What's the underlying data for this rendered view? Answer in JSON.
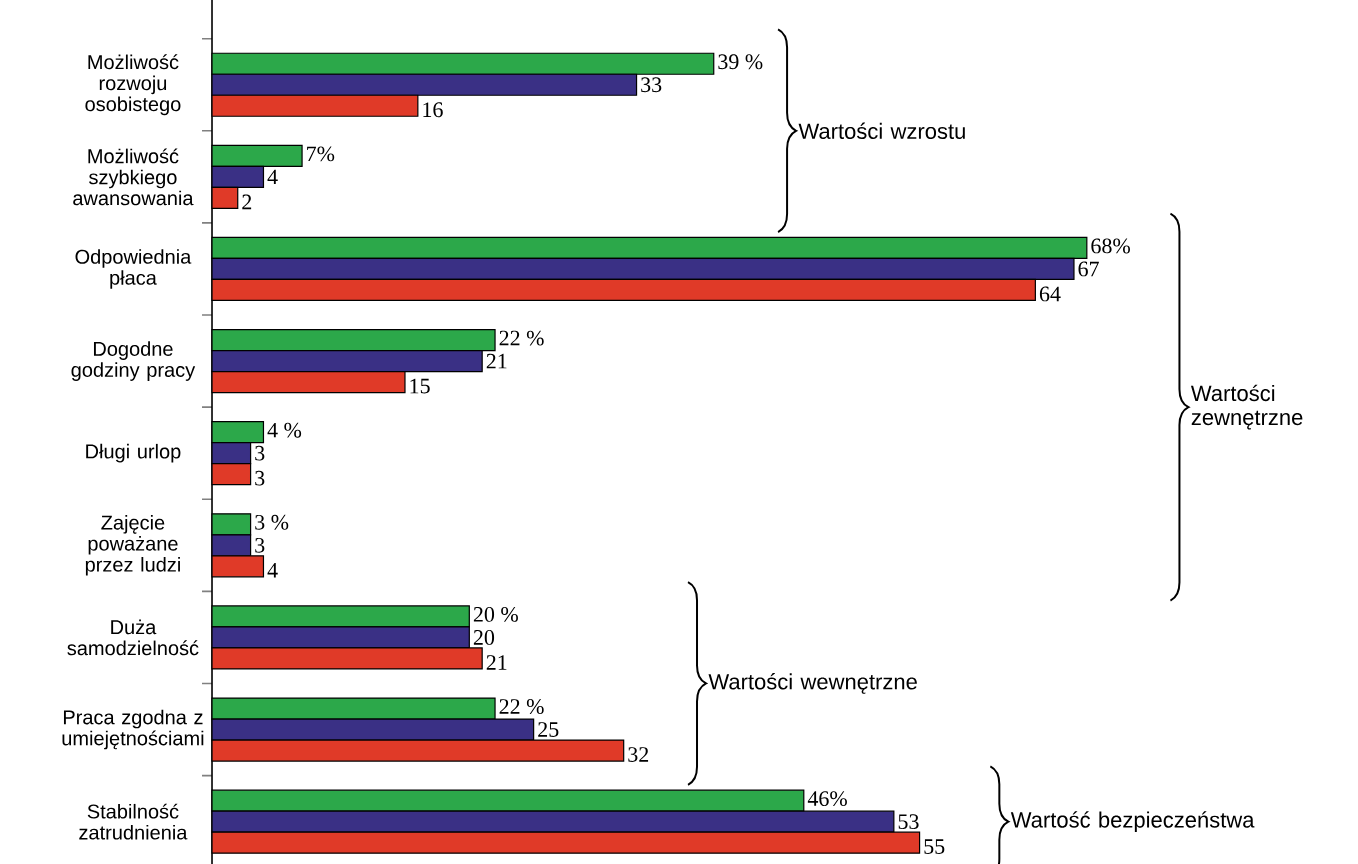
{
  "chart_data": {
    "type": "bar",
    "orientation": "horizontal",
    "categories": [
      "Możliwość rozwoju osobistego",
      "Możliwość szybkiego awansowania",
      "Odpowiednia płaca",
      "Dogodne godziny pracy",
      "Długi urlop",
      "Zajęcie poważane przez ludzi",
      "Duża samodzielność",
      "Praca zgodna z umiejętnościami",
      "Stabilność zatrudnienia"
    ],
    "series": [
      {
        "color": "#2ca84a",
        "values": [
          39,
          7,
          68,
          22,
          4,
          3,
          20,
          22,
          46
        ],
        "value_labels": [
          "39 %",
          "7%",
          "68%",
          "22 %",
          "4 %",
          "3 %",
          "20 %",
          "22 %",
          "46%"
        ]
      },
      {
        "color": "#3a3085",
        "values": [
          33,
          4,
          67,
          21,
          3,
          3,
          20,
          25,
          53
        ],
        "value_labels": [
          "33",
          "4",
          "67",
          "21",
          "3",
          "3",
          "20",
          "25",
          "53"
        ]
      },
      {
        "color": "#e03a28",
        "values": [
          16,
          2,
          64,
          15,
          3,
          4,
          21,
          32,
          55
        ],
        "value_labels": [
          "16",
          "2",
          "64",
          "15",
          "3",
          "4",
          "21",
          "32",
          "55"
        ]
      }
    ],
    "tick_labels": "y",
    "annotations": [
      "Wartości wzrostu",
      "Wartości zewnętrzne",
      "Wartości wewnętrzne",
      "Wartość bezpieczeństwa"
    ],
    "legend": false,
    "grid": false
  }
}
